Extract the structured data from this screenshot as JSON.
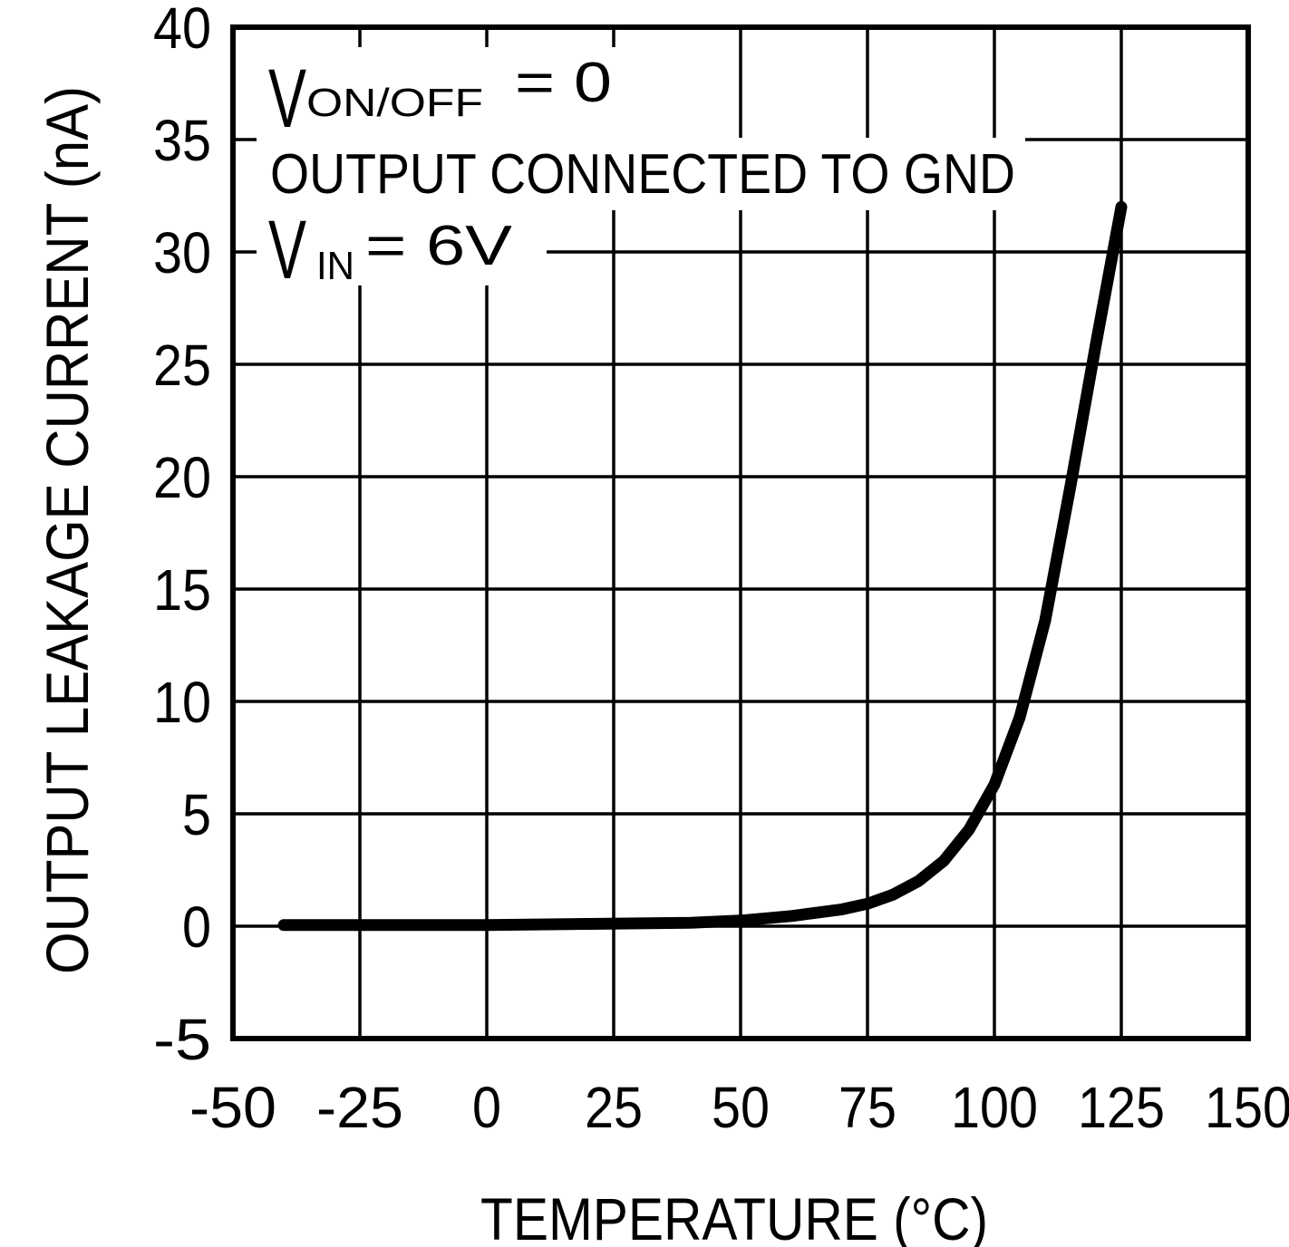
{
  "figure": {
    "background": "#ffffff",
    "ink": "#000000"
  },
  "chart_data": {
    "type": "line",
    "title": "",
    "xlabel": "TEMPERATURE (°C)",
    "ylabel": "OUTPUT LEAKAGE CURRENT (nA)",
    "xlim": [
      -50,
      150
    ],
    "ylim": [
      -5,
      40
    ],
    "x_tick_step": 25,
    "y_tick_step": 5,
    "x_ticks": [
      "-50",
      "-25",
      "0",
      "25",
      "50",
      "75",
      "100",
      "125",
      "150"
    ],
    "y_ticks": [
      "40",
      "35",
      "30",
      "25",
      "20",
      "15",
      "10",
      "5",
      "0",
      "-5"
    ],
    "grid": "on",
    "legend": "none",
    "series": [
      {
        "name": "output-leakage-current",
        "color": "#000000",
        "x": [
          -40,
          -20,
          0,
          20,
          40,
          50,
          60,
          70,
          75,
          80,
          85,
          90,
          95,
          100,
          105,
          110,
          115,
          120,
          125
        ],
        "y": [
          0.05,
          0.05,
          0.05,
          0.1,
          0.15,
          0.25,
          0.45,
          0.75,
          1.0,
          1.4,
          2.0,
          2.9,
          4.3,
          6.3,
          9.3,
          13.6,
          19.6,
          25.9,
          32.0
        ]
      }
    ],
    "annotations": [
      {
        "symbol": "V",
        "sub": "ON/OFF",
        "rest": "= 0"
      },
      {
        "text": "OUTPUT CONNECTED TO GND"
      },
      {
        "symbol": "V",
        "sub": "IN",
        "rest": "= 6V"
      }
    ]
  }
}
